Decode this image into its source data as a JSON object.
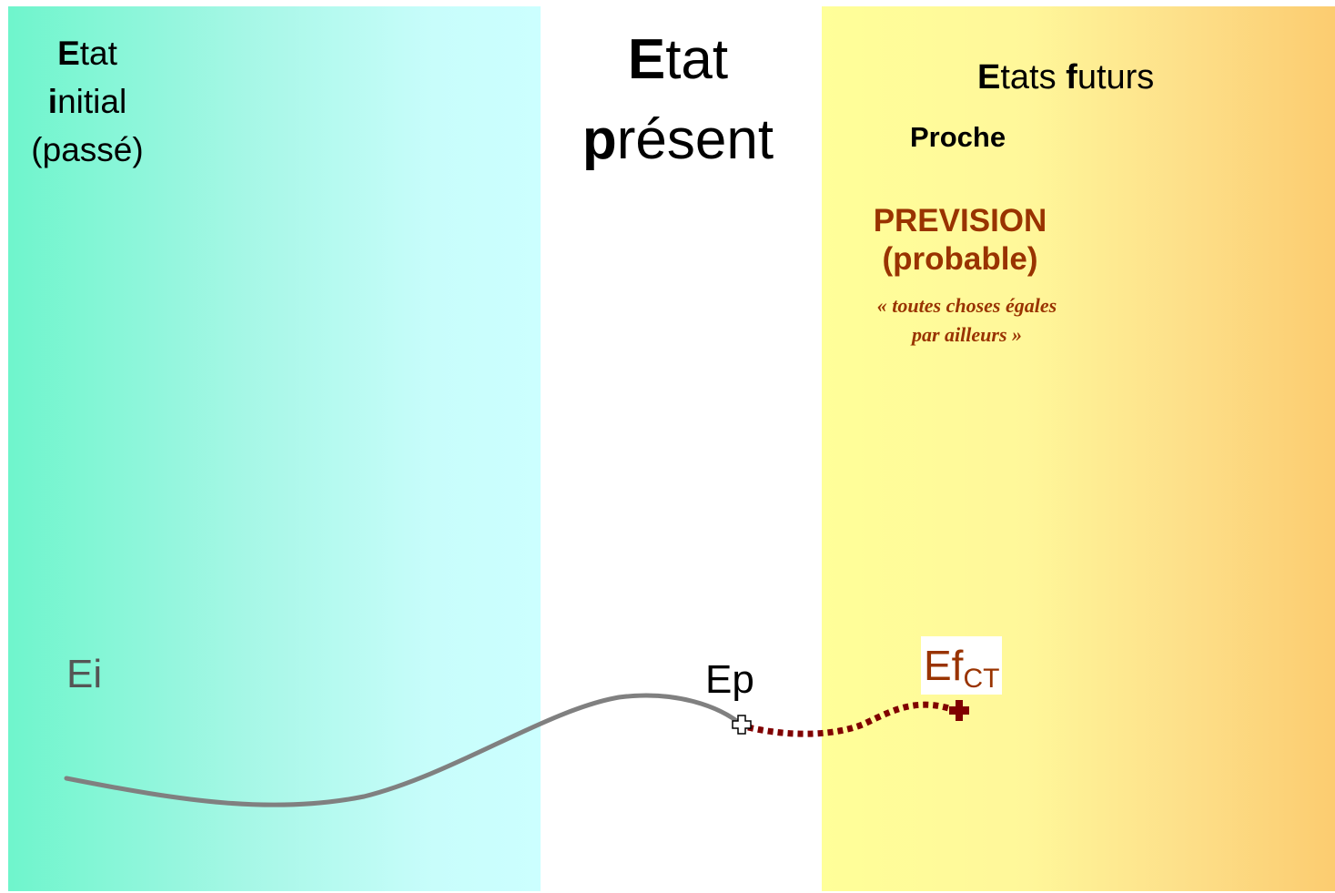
{
  "past": {
    "line1_bold": "E",
    "line1_rest": "tat",
    "line2_bold": "i",
    "line2_rest": "nitial",
    "line3": "(passé)"
  },
  "present": {
    "line1_bold": "E",
    "line1_rest": "tat",
    "line2_bold": "p",
    "line2_rest": "résent"
  },
  "future": {
    "title_bold1": "E",
    "title_rest1": "tats ",
    "title_bold2": "f",
    "title_rest2": "uturs",
    "near_label": "Proche",
    "prevision_line1": "PREVISION",
    "prevision_line2": "(probable)",
    "note_line1": "« toutes choses égales",
    "note_line2": "par ailleurs »"
  },
  "points": {
    "initial": "Ei",
    "present": "Ep",
    "future_main": "Ef",
    "future_sub": "CT"
  },
  "colors": {
    "past_panel_start": "#6ff5cc",
    "past_panel_end": "#ccffff",
    "future_panel_start": "#ffff99",
    "future_panel_end": "#fccc70",
    "trajectory_past": "#808080",
    "trajectory_forecast": "#800000",
    "forecast_text": "#993300"
  },
  "icons": {
    "present_marker": "plus-outline-icon",
    "forecast_marker": "plus-filled-icon"
  }
}
